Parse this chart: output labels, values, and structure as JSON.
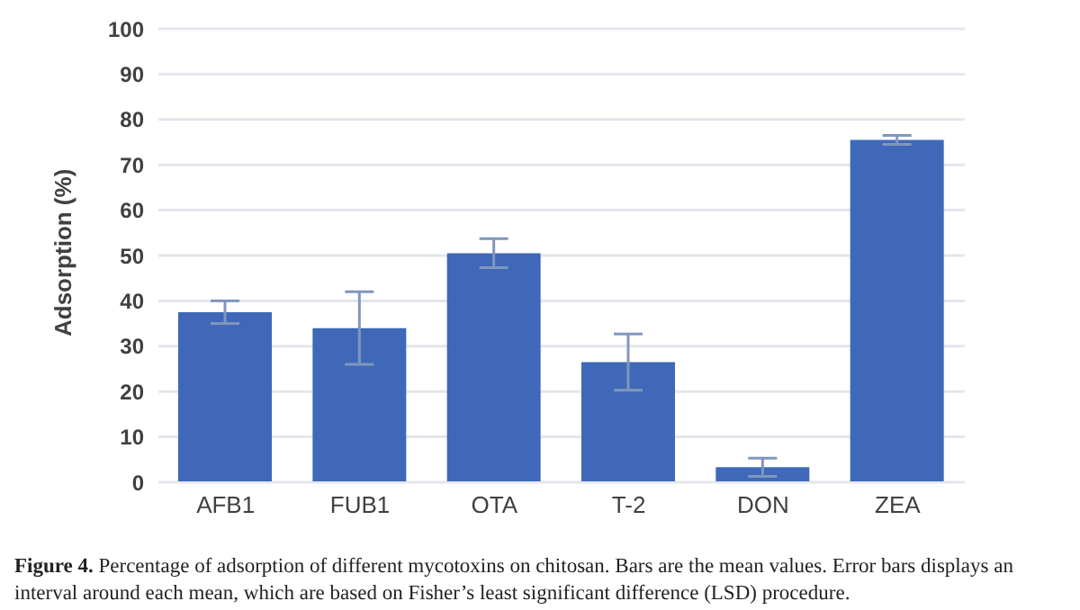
{
  "chart_data": {
    "type": "bar",
    "ylabel": "Adsorption (%)",
    "categories": [
      "AFB1",
      "FUB1",
      "OTA",
      "T-2",
      "DON",
      "ZEA"
    ],
    "values": [
      37.5,
      34,
      50.5,
      26.5,
      3.3,
      75.5
    ],
    "errors": [
      2.5,
      8,
      3.2,
      6.2,
      2,
      1
    ],
    "color": "#3f69b8",
    "ylim": [
      0,
      100
    ],
    "yticks": [
      0,
      10,
      20,
      30,
      40,
      50,
      60,
      70,
      80,
      90,
      100
    ],
    "grid": "y",
    "legend": false,
    "annotations": [
      "Figure 4.",
      "Percentage of adsorption of different mycotoxins on chitosan. Bars are the mean values. Error bars displays an interval around each mean, which are based on Fisher’s least significant difference (LSD) procedure."
    ]
  }
}
